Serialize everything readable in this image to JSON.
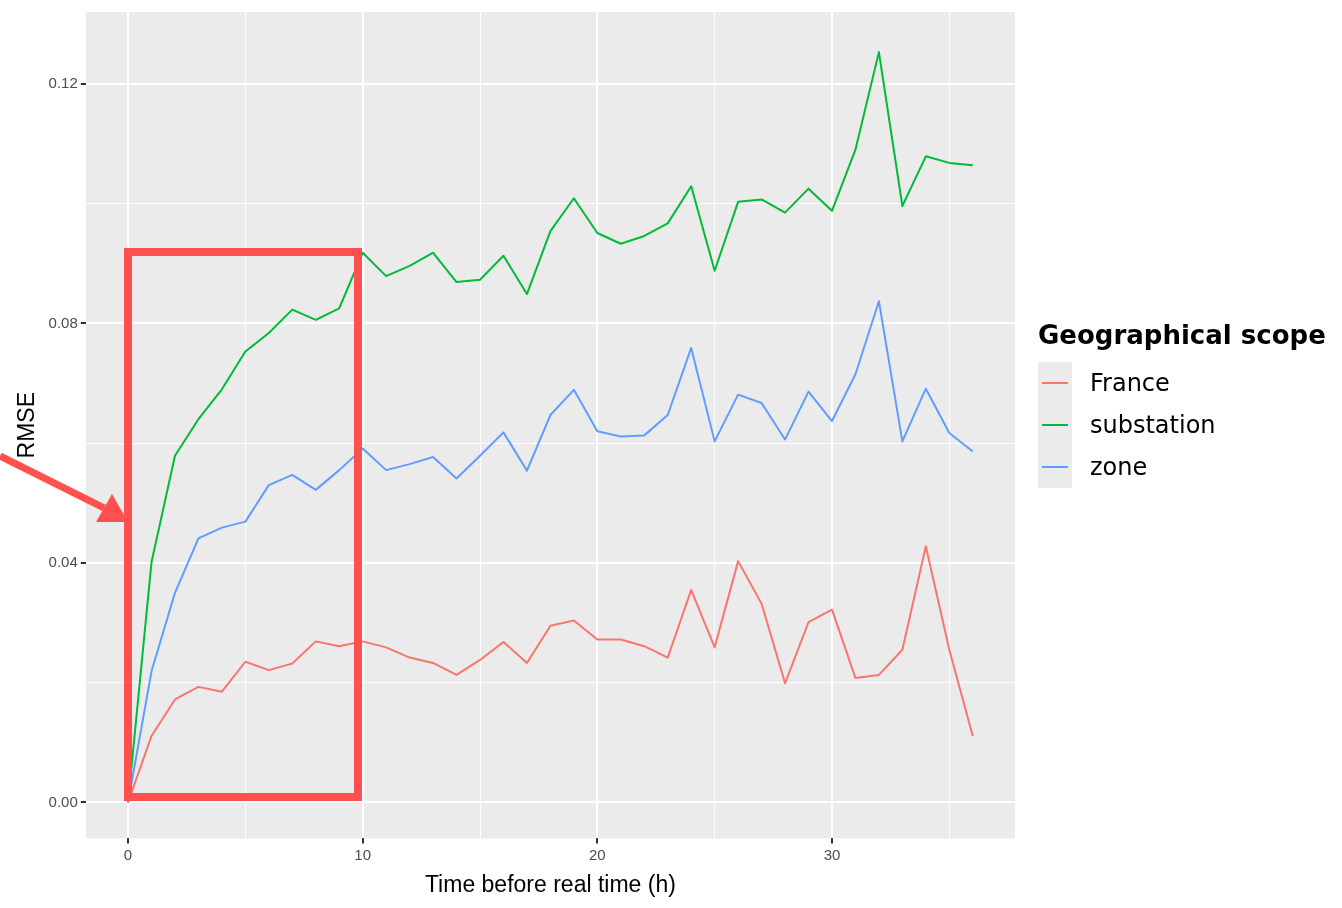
{
  "chart_data": {
    "type": "line",
    "xlabel": "Time before real time (h)",
    "ylabel": "RMSE",
    "legend_title": "Geographical scope",
    "legend": "right",
    "grid": true,
    "marker": "none",
    "line_style": "solid",
    "x": [
      0,
      1,
      2,
      3,
      4,
      5,
      6,
      7,
      8,
      9,
      10,
      11,
      12,
      13,
      14,
      15,
      16,
      17,
      18,
      19,
      20,
      21,
      22,
      23,
      24,
      25,
      26,
      27,
      28,
      29,
      30,
      31,
      32,
      33,
      34,
      35,
      36
    ],
    "xlim": [
      -1.8,
      37.8
    ],
    "xticks": [
      0,
      {
        "value": 5,
        "label": null
      },
      10,
      {
        "value": 15,
        "label": null
      },
      20,
      {
        "value": 25,
        "label": null
      },
      30,
      {
        "value": 35,
        "label": null
      }
    ],
    "ylim": [
      -0.006,
      0.132
    ],
    "yticks": [
      {
        "value": 0,
        "label": "0.00"
      },
      {
        "value": 0.02,
        "label": null
      },
      {
        "value": 0.04,
        "label": "0.04"
      },
      {
        "value": 0.06,
        "label": null
      },
      {
        "value": 0.08,
        "label": "0.08"
      },
      {
        "value": 0.1,
        "label": null
      },
      {
        "value": 0.12,
        "label": "0.12"
      }
    ],
    "series": [
      {
        "name": "France",
        "color": "#f8766d",
        "values": [
          0,
          0.0111,
          0.0172,
          0.0193,
          0.0185,
          0.0235,
          0.0221,
          0.0232,
          0.0269,
          0.0261,
          0.0269,
          0.0259,
          0.0242,
          0.0233,
          0.0213,
          0.0238,
          0.0268,
          0.0233,
          0.0295,
          0.0304,
          0.0272,
          0.0272,
          0.0261,
          0.0242,
          0.0355,
          0.0259,
          0.0403,
          0.0332,
          0.0199,
          0.0301,
          0.0322,
          0.0208,
          0.0213,
          0.0255,
          0.0428,
          0.0255,
          0.0111
        ]
      },
      {
        "name": "substation",
        "color": "#00ba38",
        "values": [
          0,
          0.0401,
          0.0579,
          0.064,
          0.069,
          0.0753,
          0.0784,
          0.0823,
          0.0806,
          0.0825,
          0.0918,
          0.0879,
          0.0896,
          0.0918,
          0.0869,
          0.0873,
          0.0913,
          0.0849,
          0.0954,
          0.1009,
          0.0951,
          0.0933,
          0.0946,
          0.0967,
          0.1029,
          0.0888,
          0.1003,
          0.1007,
          0.0985,
          0.1025,
          0.0988,
          0.109,
          0.1253,
          0.0996,
          0.1079,
          0.1068,
          0.1064
        ]
      },
      {
        "name": "zone",
        "color": "#619cff",
        "values": [
          0,
          0.0219,
          0.035,
          0.0441,
          0.0459,
          0.0469,
          0.053,
          0.0547,
          0.0522,
          0.0555,
          0.0591,
          0.0555,
          0.0565,
          0.0577,
          0.0541,
          0.0579,
          0.0618,
          0.0554,
          0.0647,
          0.0689,
          0.062,
          0.0611,
          0.0613,
          0.0647,
          0.0759,
          0.0603,
          0.0681,
          0.0667,
          0.0606,
          0.0686,
          0.0637,
          0.0715,
          0.0837,
          0.0603,
          0.0691,
          0.0617,
          0.0586
        ]
      }
    ]
  }
}
